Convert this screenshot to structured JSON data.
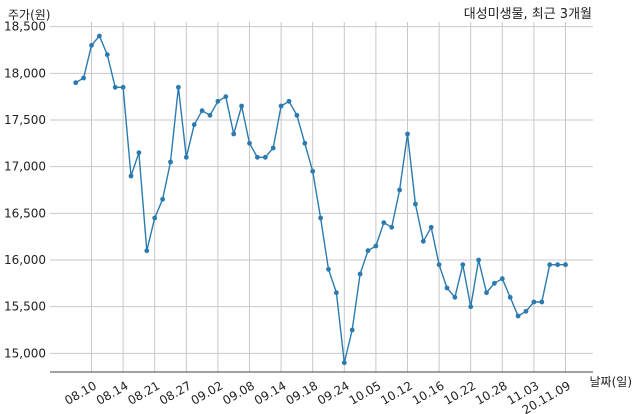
{
  "chart_data": {
    "type": "line",
    "title": "대성미생물, 최근 3개월",
    "ylabel": "주가(원)",
    "xlabel": "날짜(일)",
    "ylim": [
      14800,
      18550
    ],
    "yticks": [
      15000,
      15500,
      16000,
      16500,
      17000,
      17500,
      18000,
      18500
    ],
    "ytick_labels": [
      "15,000",
      "15,500",
      "16,000",
      "16,500",
      "17,000",
      "17,500",
      "18,000",
      "18,500"
    ],
    "grid": true,
    "x_tick_labels": [
      "08.10",
      "08.14",
      "08.21",
      "08.27",
      "09.02",
      "09.08",
      "09.14",
      "09.18",
      "09.24",
      "10.05",
      "10.12",
      "10.16",
      "10.22",
      "10.28",
      "11.03",
      "20.11.09"
    ],
    "x_tick_index": [
      2,
      6,
      10,
      14,
      18,
      22,
      26,
      30,
      34,
      38,
      42,
      46,
      50,
      54,
      58,
      62
    ],
    "line_color": "#2b7bb0",
    "series": [
      {
        "values": [
          17900,
          17950,
          18300,
          18400,
          18200,
          17850,
          17850,
          16900,
          17150,
          16100,
          16450,
          16650,
          17050,
          17850,
          17100,
          17450,
          17600,
          17550,
          17700,
          17750,
          17350,
          17650,
          17250,
          17100,
          17100,
          17200,
          17650,
          17700,
          17550,
          17250,
          16950,
          16450,
          15900,
          15650,
          14900,
          15250,
          15850,
          16100,
          16150,
          16400,
          16350,
          16750,
          17350,
          16600,
          16200,
          16350,
          15950,
          15700,
          15600,
          15950,
          15500,
          16000,
          15650,
          15750,
          15800,
          15600,
          15400,
          15450,
          15550,
          15550,
          15950,
          15950,
          15950
        ]
      }
    ]
  }
}
